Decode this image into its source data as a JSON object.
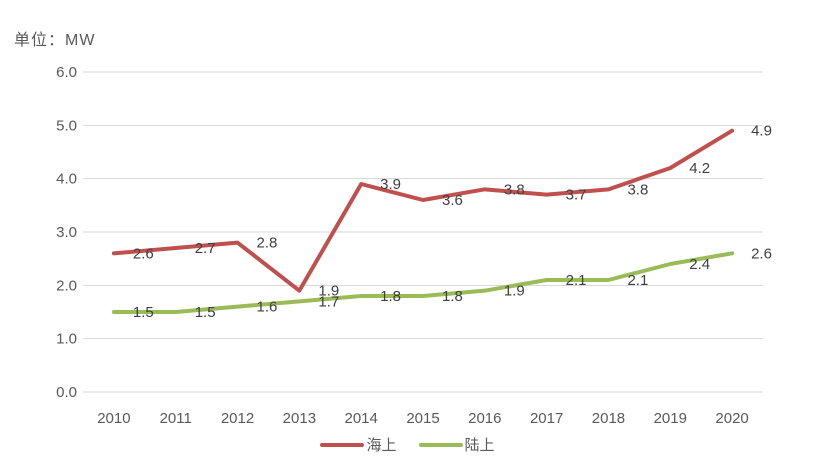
{
  "chart_data": {
    "type": "line",
    "unit": "单位：MW",
    "categories": [
      "2010",
      "2011",
      "2012",
      "2013",
      "2014",
      "2015",
      "2016",
      "2017",
      "2018",
      "2019",
      "2020"
    ],
    "series": [
      {
        "name": "海上",
        "color": "#C0504D",
        "values": [
          2.6,
          2.7,
          2.8,
          1.9,
          3.9,
          3.6,
          3.8,
          3.7,
          3.8,
          4.2,
          4.9
        ]
      },
      {
        "name": "陆上",
        "color": "#9BBB59",
        "values": [
          1.5,
          1.5,
          1.6,
          1.7,
          1.8,
          1.8,
          1.9,
          2.1,
          2.1,
          2.4,
          2.6
        ]
      }
    ],
    "ylim": [
      0,
      6
    ],
    "ytick_step": 1,
    "ytick_labels": [
      "0.0",
      "1.0",
      "2.0",
      "3.0",
      "4.0",
      "5.0",
      "6.0"
    ],
    "grid": true,
    "data_labels": true,
    "legend_position": "bottom"
  },
  "colors": {
    "gridline": "#D9D9D9",
    "axis_text": "#595959",
    "data_label_text": "#404040",
    "background": "#FFFFFF"
  }
}
